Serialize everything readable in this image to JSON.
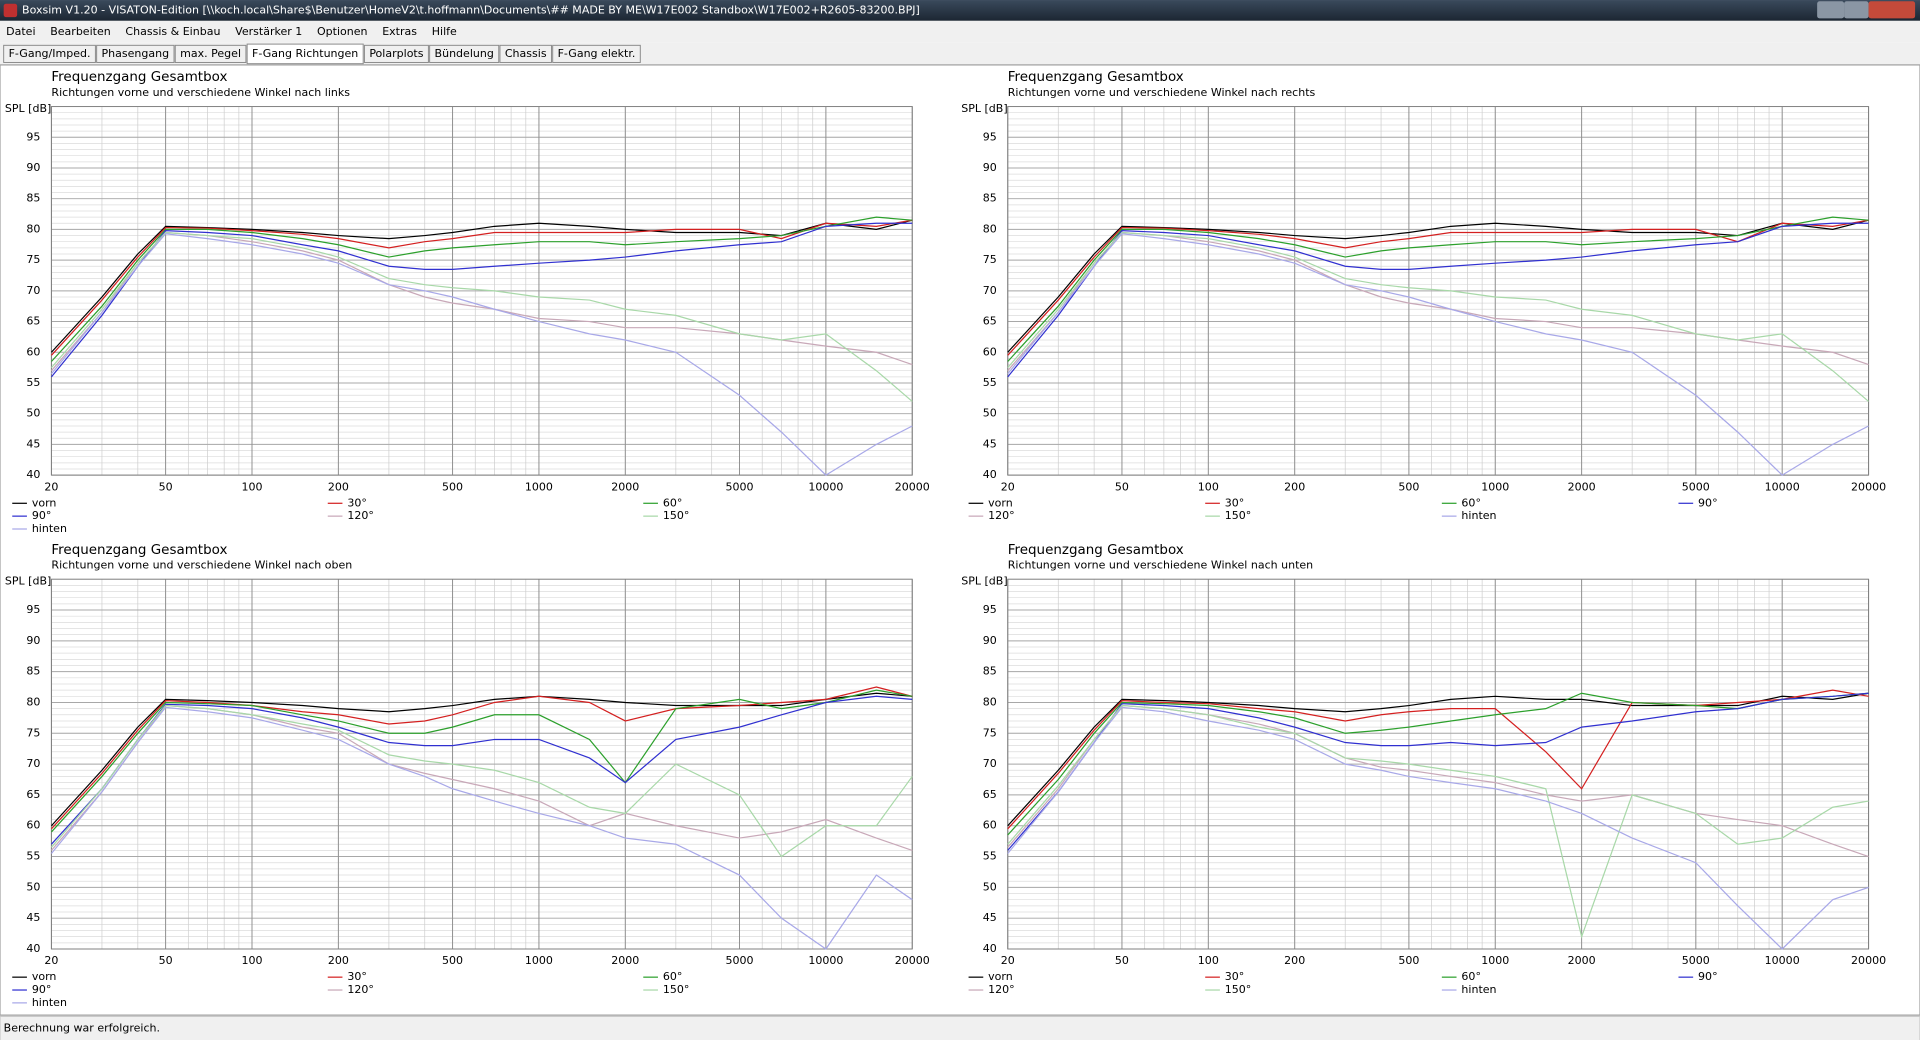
{
  "window": {
    "title": "Boxsim V1.20 - VISATON-Edition [\\\\koch.local\\Share$\\Benutzer\\HomeV2\\t.hoffmann\\Documents\\## MADE BY ME\\W17E002 Standbox\\W17E002+R2605-83200.BPJ]"
  },
  "menu": [
    "Datei",
    "Bearbeiten",
    "Chassis & Einbau",
    "Verstärker 1",
    "Optionen",
    "Extras",
    "Hilfe"
  ],
  "tabs": [
    "F-Gang/Imped.",
    "Phasengang",
    "max. Pegel",
    "F-Gang Richtungen",
    "Polarplots",
    "Bündelung",
    "Chassis",
    "F-Gang elektr."
  ],
  "active_tab": "F-Gang Richtungen",
  "status": "Berechnung war erfolgreich.",
  "chart_data": [
    {
      "type": "line",
      "title": "Frequenzgang Gesamtbox",
      "subtitle": "Richtungen vorne und verschiedene Winkel nach links",
      "y_label": "SPL [dB]",
      "log_x": true,
      "grid": true,
      "legend_columns": 3,
      "x": [
        20,
        30,
        40,
        50,
        70,
        100,
        150,
        200,
        300,
        400,
        500,
        700,
        1000,
        1500,
        2000,
        3000,
        5000,
        7000,
        10000,
        15000,
        20000
      ],
      "xlim": [
        20,
        20000
      ],
      "ylim": [
        40,
        100
      ],
      "xticks": [
        20,
        50,
        100,
        200,
        500,
        1000,
        2000,
        5000,
        10000,
        20000
      ],
      "yticks": [
        40,
        45,
        50,
        55,
        60,
        65,
        70,
        75,
        80,
        85,
        90,
        95
      ],
      "series": [
        {
          "name": "vorn",
          "color": "#000000",
          "values": [
            60,
            69,
            76,
            80.5,
            80.3,
            80,
            79.5,
            79,
            78.5,
            79,
            79.5,
            80.5,
            81,
            80.5,
            80,
            79.5,
            79.5,
            79,
            81,
            80,
            81.5
          ]
        },
        {
          "name": "30°",
          "color": "#d42020",
          "values": [
            59.5,
            68.5,
            75.5,
            80.3,
            80.2,
            79.8,
            79.2,
            78.5,
            77,
            78,
            78.5,
            79.5,
            79.5,
            79.5,
            79.5,
            80,
            80,
            78.5,
            81,
            80.5,
            81.5
          ]
        },
        {
          "name": "60°",
          "color": "#2ca02c",
          "values": [
            58.5,
            67.5,
            75,
            80,
            80,
            79.5,
            78.5,
            77.5,
            75.5,
            76.5,
            77,
            77.5,
            78,
            78,
            77.5,
            78,
            78.5,
            79,
            80.5,
            82,
            81.5
          ]
        },
        {
          "name": "90°",
          "color": "#3030d0",
          "values": [
            56,
            66,
            74,
            79.8,
            79.5,
            79,
            77.5,
            76.5,
            74,
            73.5,
            73.5,
            74,
            74.5,
            75,
            75.5,
            76.5,
            77.5,
            78,
            80.5,
            81,
            81
          ]
        },
        {
          "name": "120°",
          "color": "#c8a8b8",
          "values": [
            57,
            66.5,
            74.5,
            79.5,
            79,
            78,
            76.5,
            75,
            71,
            69,
            68,
            67,
            65.5,
            65,
            64,
            64,
            63,
            62,
            61,
            60,
            58
          ]
        },
        {
          "name": "150°",
          "color": "#a8d8a8",
          "values": [
            57.5,
            67,
            74.5,
            79.5,
            79,
            78.5,
            77,
            75.5,
            72,
            71,
            70.5,
            70,
            69,
            68.5,
            67,
            66,
            63,
            62,
            63,
            57,
            52
          ]
        },
        {
          "name": "hinten",
          "color": "#a8a8e8",
          "values": [
            56.5,
            66.5,
            74,
            79.3,
            78.5,
            77.5,
            76,
            74.5,
            71,
            70,
            69,
            67,
            65,
            63,
            62,
            60,
            53,
            47,
            40,
            45,
            48
          ]
        }
      ]
    },
    {
      "type": "line",
      "title": "Frequenzgang Gesamtbox",
      "subtitle": "Richtungen vorne und verschiedene Winkel nach rechts",
      "y_label": "SPL [dB]",
      "log_x": true,
      "grid": true,
      "legend_columns": 4,
      "x": [
        20,
        30,
        40,
        50,
        70,
        100,
        150,
        200,
        300,
        400,
        500,
        700,
        1000,
        1500,
        2000,
        3000,
        5000,
        7000,
        10000,
        15000,
        20000
      ],
      "xlim": [
        20,
        20000
      ],
      "ylim": [
        40,
        100
      ],
      "xticks": [
        20,
        50,
        100,
        200,
        500,
        1000,
        2000,
        5000,
        10000,
        20000
      ],
      "yticks": [
        40,
        45,
        50,
        55,
        60,
        65,
        70,
        75,
        80,
        85,
        90,
        95
      ],
      "series": [
        {
          "name": "vorn",
          "color": "#000000",
          "values": [
            60,
            69,
            76,
            80.5,
            80.3,
            80,
            79.5,
            79,
            78.5,
            79,
            79.5,
            80.5,
            81,
            80.5,
            80,
            79.5,
            79.5,
            79,
            81,
            80,
            81.5
          ]
        },
        {
          "name": "30°",
          "color": "#d42020",
          "values": [
            59.5,
            68.5,
            75.5,
            80.3,
            80.2,
            79.8,
            79.2,
            78.5,
            77,
            78,
            78.5,
            79.5,
            79.5,
            79.5,
            79.5,
            80,
            80,
            78,
            81,
            80.5,
            81.5
          ]
        },
        {
          "name": "60°",
          "color": "#2ca02c",
          "values": [
            58.5,
            67.5,
            75,
            80,
            80,
            79.5,
            78.5,
            77.5,
            75.5,
            76.5,
            77,
            77.5,
            78,
            78,
            77.5,
            78,
            78.5,
            79,
            80.5,
            82,
            81.5
          ]
        },
        {
          "name": "90°",
          "color": "#3030d0",
          "values": [
            56,
            66,
            74,
            79.8,
            79.5,
            79,
            77.5,
            76.5,
            74,
            73.5,
            73.5,
            74,
            74.5,
            75,
            75.5,
            76.5,
            77.5,
            78,
            80.5,
            81,
            81
          ]
        },
        {
          "name": "120°",
          "color": "#c8a8b8",
          "values": [
            57,
            66.5,
            74.5,
            79.5,
            79,
            78,
            76.5,
            75,
            71,
            69,
            68,
            67,
            65.5,
            65,
            64,
            64,
            63,
            62,
            61,
            60,
            58
          ]
        },
        {
          "name": "150°",
          "color": "#a8d8a8",
          "values": [
            57.5,
            67,
            74.5,
            79.5,
            79,
            78.5,
            77,
            75.5,
            72,
            71,
            70.5,
            70,
            69,
            68.5,
            67,
            66,
            63,
            62,
            63,
            57,
            52
          ]
        },
        {
          "name": "hinten",
          "color": "#a8a8e8",
          "values": [
            56.5,
            66.5,
            74,
            79.3,
            78.5,
            77.5,
            76,
            74.5,
            71,
            70,
            69,
            67,
            65,
            63,
            62,
            60,
            53,
            47,
            40,
            45,
            48
          ]
        }
      ]
    },
    {
      "type": "line",
      "title": "Frequenzgang Gesamtbox",
      "subtitle": "Richtungen vorne und verschiedene Winkel nach oben",
      "y_label": "SPL [dB]",
      "log_x": true,
      "grid": true,
      "legend_columns": 3,
      "x": [
        20,
        30,
        40,
        50,
        70,
        100,
        150,
        200,
        300,
        400,
        500,
        700,
        1000,
        1500,
        2000,
        3000,
        5000,
        7000,
        10000,
        15000,
        20000
      ],
      "xlim": [
        20,
        20000
      ],
      "ylim": [
        40,
        100
      ],
      "xticks": [
        20,
        50,
        100,
        200,
        500,
        1000,
        2000,
        5000,
        10000,
        20000
      ],
      "yticks": [
        40,
        45,
        50,
        55,
        60,
        65,
        70,
        75,
        80,
        85,
        90,
        95
      ],
      "series": [
        {
          "name": "vorn",
          "color": "#000000",
          "values": [
            60,
            69,
            76,
            80.5,
            80.3,
            80,
            79.5,
            79,
            78.5,
            79,
            79.5,
            80.5,
            81,
            80.5,
            80,
            79.5,
            79.5,
            79.5,
            80.5,
            81.5,
            81
          ]
        },
        {
          "name": "30°",
          "color": "#d42020",
          "values": [
            59.5,
            68.5,
            75.5,
            80.3,
            80,
            79.5,
            78.5,
            78,
            76.5,
            77,
            78,
            80,
            81,
            80,
            77,
            79,
            79.5,
            80,
            80.5,
            82.5,
            81
          ]
        },
        {
          "name": "60°",
          "color": "#2ca02c",
          "values": [
            59,
            68,
            75,
            80,
            79.8,
            79.5,
            78,
            77,
            75,
            75,
            76,
            78,
            78,
            74,
            67,
            79,
            80.5,
            79,
            80,
            82,
            81
          ]
        },
        {
          "name": "90°",
          "color": "#3030d0",
          "values": [
            57,
            66,
            74,
            79.7,
            79.5,
            79,
            77.5,
            76,
            73.5,
            73,
            73,
            74,
            74,
            71,
            67,
            74,
            76,
            78,
            80,
            81,
            80.5
          ]
        },
        {
          "name": "120°",
          "color": "#c8a8b8",
          "values": [
            56,
            65.5,
            73.5,
            79.5,
            79,
            78,
            76,
            75,
            70,
            68.5,
            67.5,
            66,
            64,
            60,
            62,
            60,
            58,
            59,
            61,
            58,
            56
          ]
        },
        {
          "name": "150°",
          "color": "#a8d8a8",
          "values": [
            56.5,
            66,
            74,
            79.5,
            79,
            78,
            76.5,
            75.5,
            71.5,
            70.5,
            70,
            69,
            67,
            63,
            62,
            70,
            65,
            55,
            60,
            60,
            68
          ]
        },
        {
          "name": "hinten",
          "color": "#a8a8e8",
          "values": [
            55.5,
            65.5,
            73.5,
            79.2,
            78.5,
            77.5,
            75.5,
            74,
            70,
            68,
            66,
            64,
            62,
            60,
            58,
            57,
            52,
            45,
            40,
            52,
            48
          ]
        }
      ]
    },
    {
      "type": "line",
      "title": "Frequenzgang Gesamtbox",
      "subtitle": "Richtungen vorne und verschiedene Winkel nach unten",
      "y_label": "SPL [dB]",
      "log_x": true,
      "grid": true,
      "legend_columns": 4,
      "x": [
        20,
        30,
        40,
        50,
        70,
        100,
        150,
        200,
        300,
        400,
        500,
        700,
        1000,
        1500,
        2000,
        3000,
        5000,
        7000,
        10000,
        15000,
        20000
      ],
      "xlim": [
        20,
        20000
      ],
      "ylim": [
        40,
        100
      ],
      "xticks": [
        20,
        50,
        100,
        200,
        500,
        1000,
        2000,
        5000,
        10000,
        20000
      ],
      "yticks": [
        40,
        45,
        50,
        55,
        60,
        65,
        70,
        75,
        80,
        85,
        90,
        95
      ],
      "series": [
        {
          "name": "vorn",
          "color": "#000000",
          "values": [
            60,
            69,
            76,
            80.5,
            80.3,
            80,
            79.5,
            79,
            78.5,
            79,
            79.5,
            80.5,
            81,
            80.5,
            80.5,
            79.5,
            79.5,
            79.5,
            81,
            80.5,
            81.5
          ]
        },
        {
          "name": "30°",
          "color": "#d42020",
          "values": [
            59.5,
            68.5,
            75.5,
            80.3,
            80,
            79.8,
            79,
            78.5,
            77,
            78,
            78.5,
            79,
            79,
            72,
            66,
            80,
            79.5,
            80,
            80.5,
            82,
            81
          ]
        },
        {
          "name": "60°",
          "color": "#2ca02c",
          "values": [
            58.5,
            67.5,
            75,
            80,
            79.8,
            79.5,
            78.5,
            77.5,
            75,
            75.5,
            76,
            77,
            78,
            79,
            81.5,
            80,
            79.5,
            79,
            80.5,
            81,
            81.5
          ]
        },
        {
          "name": "90°",
          "color": "#3030d0",
          "values": [
            56,
            65.5,
            73.5,
            79.8,
            79.5,
            79,
            77.5,
            76,
            73.5,
            73,
            73,
            73.5,
            73,
            73.5,
            76,
            77,
            78.5,
            79,
            80.5,
            81,
            81.5
          ]
        },
        {
          "name": "120°",
          "color": "#c8a8b8",
          "values": [
            56.5,
            66,
            74,
            79.5,
            79,
            78,
            76.5,
            75,
            71,
            69.5,
            69,
            68,
            67,
            65,
            64,
            65,
            62,
            61,
            60,
            57,
            55
          ]
        },
        {
          "name": "150°",
          "color": "#a8d8a8",
          "values": [
            57,
            66.5,
            74,
            79.5,
            79,
            78,
            76,
            75,
            71,
            70.5,
            70,
            69,
            68,
            66,
            42,
            65,
            62,
            57,
            58,
            63,
            64
          ]
        },
        {
          "name": "hinten",
          "color": "#a8a8e8",
          "values": [
            55.5,
            65.5,
            73.5,
            79.2,
            78.5,
            77,
            75.5,
            74,
            70,
            69,
            68,
            67,
            66,
            64,
            62,
            58,
            54,
            47,
            40,
            48,
            50
          ]
        }
      ]
    }
  ]
}
